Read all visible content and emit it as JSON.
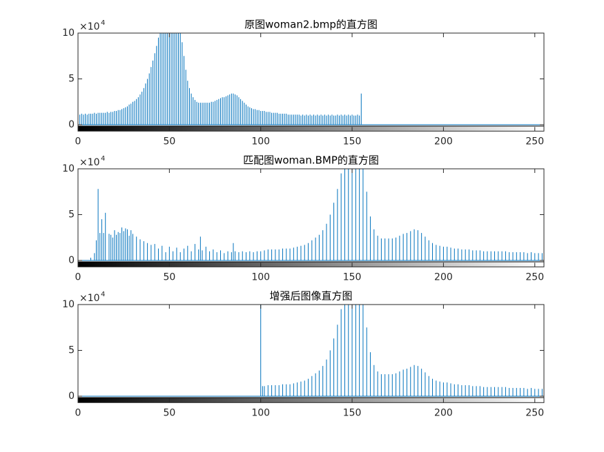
{
  "chart_data": [
    {
      "type": "stem",
      "title": "原图woman2.bmp的直方图",
      "y_multiplier": "×10",
      "y_multiplier_power": "4",
      "color": "#0072bd",
      "xlim": [
        0,
        255
      ],
      "xticks": [
        0,
        50,
        100,
        150,
        200,
        250
      ],
      "ylim": [
        -0.7,
        10
      ],
      "yticks": [
        0,
        5,
        10
      ],
      "x": [
        0,
        1,
        2,
        3,
        4,
        5,
        6,
        7,
        8,
        9,
        10,
        11,
        12,
        13,
        14,
        15,
        16,
        17,
        18,
        19,
        20,
        21,
        22,
        23,
        24,
        25,
        26,
        27,
        28,
        29,
        30,
        31,
        32,
        33,
        34,
        35,
        36,
        37,
        38,
        39,
        40,
        41,
        42,
        43,
        44,
        45,
        46,
        47,
        48,
        49,
        50,
        51,
        52,
        53,
        54,
        55,
        56,
        57,
        58,
        59,
        60,
        61,
        62,
        63,
        64,
        65,
        66,
        67,
        68,
        69,
        70,
        71,
        72,
        73,
        74,
        75,
        76,
        77,
        78,
        79,
        80,
        81,
        82,
        83,
        84,
        85,
        86,
        87,
        88,
        89,
        90,
        91,
        92,
        93,
        94,
        95,
        96,
        97,
        98,
        99,
        100,
        101,
        102,
        103,
        104,
        105,
        106,
        107,
        108,
        109,
        110,
        111,
        112,
        113,
        114,
        115,
        116,
        117,
        118,
        119,
        120,
        121,
        122,
        123,
        124,
        125,
        126,
        127,
        128,
        129,
        130,
        131,
        132,
        133,
        134,
        135,
        136,
        137,
        138,
        139,
        140,
        141,
        142,
        143,
        144,
        145,
        146,
        147,
        148,
        149,
        150,
        151,
        152,
        153,
        154,
        155
      ],
      "values": [
        10,
        1.1,
        1.2,
        1.1,
        1.2,
        1.1,
        1.2,
        1.2,
        1.2,
        1.3,
        1.2,
        1.3,
        1.3,
        1.3,
        1.3,
        1.3,
        1.4,
        1.3,
        1.4,
        1.4,
        1.5,
        1.5,
        1.6,
        1.6,
        1.7,
        1.8,
        1.9,
        2.0,
        2.2,
        2.3,
        2.5,
        2.6,
        2.8,
        3.0,
        3.3,
        3.6,
        4.0,
        4.5,
        5.0,
        5.6,
        6.3,
        7.0,
        7.8,
        8.6,
        9.5,
        10,
        10,
        10,
        10,
        10,
        10,
        10,
        10,
        10,
        10,
        10,
        10,
        9.0,
        7.5,
        6.0,
        4.8,
        4.0,
        3.4,
        3.0,
        2.7,
        2.5,
        2.4,
        2.4,
        2.4,
        2.4,
        2.4,
        2.4,
        2.4,
        2.5,
        2.5,
        2.6,
        2.7,
        2.8,
        2.9,
        3.0,
        3.0,
        3.1,
        3.2,
        3.3,
        3.4,
        3.4,
        3.3,
        3.2,
        3.0,
        2.8,
        2.6,
        2.4,
        2.2,
        2.0,
        1.9,
        1.8,
        1.7,
        1.7,
        1.6,
        1.6,
        1.5,
        1.5,
        1.5,
        1.4,
        1.4,
        1.4,
        1.3,
        1.3,
        1.3,
        1.3,
        1.2,
        1.2,
        1.2,
        1.2,
        1.2,
        1.1,
        1.1,
        1.1,
        1.1,
        1.1,
        1.1,
        1.1,
        1.0,
        1.1,
        1.0,
        1.1,
        1.0,
        1.1,
        1.0,
        1.1,
        1.0,
        1.1,
        1.0,
        1.1,
        1.0,
        1.1,
        1.0,
        1.1,
        1.0,
        1.1,
        1.0,
        1.0,
        1.1,
        1.0,
        1.1,
        1.0,
        1.1,
        1.0,
        1.1,
        1.0,
        1.1,
        1.0,
        1.0,
        1.1,
        1.0,
        3.4
      ]
    },
    {
      "type": "stem",
      "title": "匹配图woman.BMP的直方图",
      "y_multiplier": "×10",
      "y_multiplier_power": "4",
      "color": "#0072bd",
      "xlim": [
        0,
        255
      ],
      "xticks": [
        0,
        50,
        100,
        150,
        200,
        250
      ],
      "ylim": [
        -0.7,
        10
      ],
      "yticks": [
        0,
        5,
        10
      ],
      "x": [
        7,
        9,
        10,
        11,
        12,
        13,
        14,
        15,
        17,
        18,
        19,
        20,
        21,
        22,
        23,
        24,
        25,
        26,
        27,
        28,
        29,
        30,
        32,
        34,
        36,
        38,
        40,
        42,
        44,
        46,
        48,
        50,
        52,
        54,
        56,
        58,
        60,
        62,
        64,
        66,
        67,
        68,
        70,
        72,
        74,
        76,
        78,
        80,
        82,
        84,
        85,
        86,
        88,
        90,
        92,
        94,
        96,
        98,
        100,
        102,
        104,
        106,
        108,
        110,
        112,
        114,
        116,
        118,
        120,
        122,
        124,
        126,
        128,
        130,
        132,
        134,
        136,
        138,
        140,
        142,
        144,
        146,
        148,
        150,
        152,
        154,
        156,
        158,
        160,
        162,
        164,
        166,
        168,
        170,
        172,
        174,
        176,
        178,
        180,
        182,
        184,
        186,
        188,
        190,
        192,
        194,
        196,
        198,
        200,
        202,
        204,
        206,
        208,
        210,
        212,
        214,
        216,
        218,
        220,
        222,
        224,
        226,
        228,
        230,
        232,
        234,
        236,
        238,
        240,
        242,
        244,
        246,
        248,
        250,
        252,
        254,
        255
      ],
      "values": [
        0.3,
        0.8,
        2.2,
        7.8,
        3.0,
        4.5,
        3.0,
        5.2,
        2.9,
        2.8,
        2.5,
        3.3,
        2.8,
        3.1,
        3.0,
        3.6,
        3.2,
        3.5,
        3.4,
        2.7,
        3.3,
        2.9,
        2.6,
        2.3,
        2.1,
        1.9,
        1.7,
        1.8,
        1.3,
        1.6,
        0.9,
        1.5,
        1.0,
        1.4,
        0.9,
        1.3,
        1.6,
        1.0,
        1.8,
        1.2,
        2.6,
        1.1,
        1.5,
        1.0,
        1.2,
        0.9,
        1.1,
        0.8,
        1.0,
        0.9,
        1.9,
        1.0,
        0.9,
        1.0,
        0.9,
        1.0,
        0.9,
        1.0,
        1.0,
        1.1,
        1.2,
        1.2,
        1.2,
        1.2,
        1.3,
        1.3,
        1.3,
        1.4,
        1.5,
        1.6,
        1.7,
        1.9,
        2.2,
        2.5,
        2.8,
        3.3,
        4.0,
        5.0,
        6.3,
        7.8,
        9.5,
        10,
        10,
        10,
        10,
        10,
        10,
        7.5,
        4.8,
        3.4,
        2.7,
        2.4,
        2.4,
        2.4,
        2.4,
        2.5,
        2.7,
        2.9,
        3.0,
        3.2,
        3.4,
        3.3,
        3.0,
        2.6,
        2.2,
        1.9,
        1.7,
        1.6,
        1.5,
        1.5,
        1.4,
        1.3,
        1.3,
        1.2,
        1.2,
        1.2,
        1.1,
        1.1,
        1.1,
        1.0,
        1.0,
        1.0,
        1.0,
        1.0,
        1.0,
        1.0,
        0.9,
        0.9,
        0.9,
        0.9,
        0.9,
        0.8,
        0.9,
        0.8,
        0.8,
        0.8,
        3.4
      ]
    },
    {
      "type": "stem",
      "title": "增强后图像直方图",
      "y_multiplier": "×10",
      "y_multiplier_power": "4",
      "color": "#0072bd",
      "xlim": [
        0,
        255
      ],
      "xticks": [
        0,
        50,
        100,
        150,
        200,
        250
      ],
      "ylim": [
        -0.7,
        10
      ],
      "yticks": [
        0,
        5,
        10
      ],
      "x": [
        100,
        101,
        102,
        104,
        106,
        108,
        110,
        112,
        114,
        116,
        118,
        120,
        122,
        124,
        126,
        128,
        130,
        132,
        134,
        136,
        138,
        140,
        142,
        144,
        146,
        148,
        150,
        152,
        154,
        156,
        158,
        160,
        162,
        164,
        166,
        168,
        170,
        172,
        174,
        176,
        178,
        180,
        182,
        184,
        186,
        188,
        190,
        192,
        194,
        196,
        198,
        200,
        202,
        204,
        206,
        208,
        210,
        212,
        214,
        216,
        218,
        220,
        222,
        224,
        226,
        228,
        230,
        232,
        234,
        236,
        238,
        240,
        242,
        244,
        246,
        248,
        250,
        252,
        254,
        255
      ],
      "values": [
        10,
        1.1,
        1.1,
        1.2,
        1.2,
        1.2,
        1.2,
        1.3,
        1.3,
        1.3,
        1.4,
        1.5,
        1.6,
        1.7,
        1.9,
        2.2,
        2.5,
        2.8,
        3.3,
        4.0,
        5.0,
        6.3,
        7.8,
        9.5,
        10,
        10,
        10,
        10,
        10,
        10,
        7.5,
        4.8,
        3.4,
        2.7,
        2.4,
        2.4,
        2.4,
        2.4,
        2.5,
        2.7,
        2.9,
        3.0,
        3.2,
        3.4,
        3.3,
        3.0,
        2.6,
        2.2,
        1.9,
        1.7,
        1.6,
        1.5,
        1.5,
        1.4,
        1.3,
        1.3,
        1.2,
        1.2,
        1.2,
        1.1,
        1.1,
        1.1,
        1.0,
        1.0,
        1.0,
        1.0,
        1.0,
        1.0,
        1.0,
        0.9,
        0.9,
        0.9,
        0.9,
        0.9,
        0.8,
        0.9,
        0.8,
        0.8,
        0.8,
        3.4
      ]
    }
  ]
}
